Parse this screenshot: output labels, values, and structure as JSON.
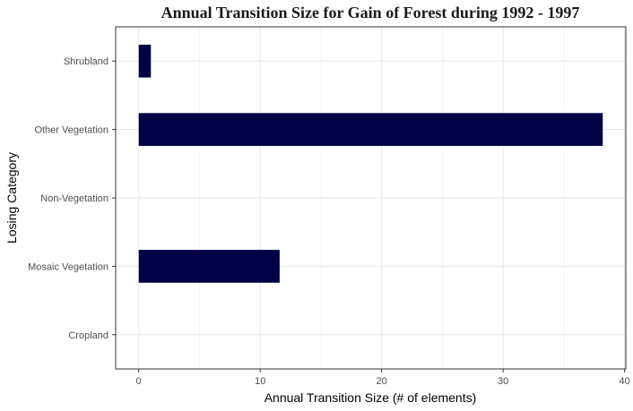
{
  "chart_data": {
    "type": "bar",
    "orientation": "horizontal",
    "title": "Annual Transition Size for Gain of  Forest during 1992 - 1997",
    "xlabel": "Annual Transition Size (# of elements)",
    "ylabel": "Losing Category",
    "categories": [
      "Cropland",
      "Mosaic Vegetation",
      "Non-Vegetation",
      "Other Vegetation",
      "Shrubland"
    ],
    "values": [
      0,
      11.6,
      0,
      38.2,
      1.0
    ],
    "xlim": [
      -1.9,
      40.1
    ],
    "xticks": [
      0,
      10,
      20,
      30,
      40
    ],
    "grid": true,
    "bar_color": "#000046"
  }
}
